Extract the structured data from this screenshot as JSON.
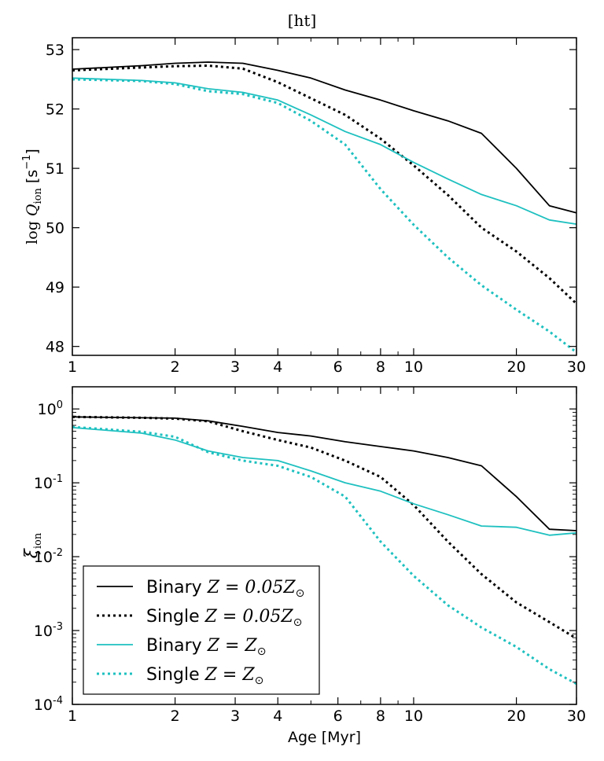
{
  "page": {
    "title": "[ht]"
  },
  "colors": {
    "black": "#000000",
    "cyan": "#1fc0c0"
  },
  "chart_data": [
    {
      "type": "line",
      "xscale": "log",
      "xlim": [
        1,
        30
      ],
      "ylim": [
        47.85,
        53.2
      ],
      "yscale": "linear",
      "xticks": [
        1,
        2,
        3,
        4,
        6,
        8,
        10,
        20,
        30
      ],
      "xtick_labels": [
        "1",
        "2",
        "3",
        "4",
        "6",
        "8",
        "10",
        "20",
        "30"
      ],
      "yticks": [
        48,
        49,
        50,
        51,
        52,
        53
      ],
      "ytick_labels": [
        "48",
        "49",
        "50",
        "51",
        "52",
        "53"
      ],
      "ylabel_parts": {
        "main": "log",
        "sym": "Q",
        "sub": "ion",
        "unit": "[s",
        "sup": "−1",
        "close": "]"
      },
      "xlabel": "",
      "series": [
        {
          "color": "black",
          "style": "solid",
          "x": [
            1,
            1.6,
            2,
            2.5,
            3.16,
            4,
            5,
            6.3,
            8,
            10,
            12.6,
            15.8,
            20,
            25,
            30
          ],
          "y": [
            52.67,
            52.73,
            52.77,
            52.79,
            52.77,
            52.65,
            52.52,
            52.32,
            52.15,
            51.97,
            51.8,
            51.59,
            51.0,
            50.37,
            50.25
          ]
        },
        {
          "color": "black",
          "style": "dotted",
          "x": [
            1,
            1.6,
            2,
            2.5,
            3.16,
            4,
            5,
            6.3,
            8,
            10,
            12.6,
            15.8,
            20,
            25,
            30
          ],
          "y": [
            52.65,
            52.7,
            52.72,
            52.73,
            52.68,
            52.45,
            52.18,
            51.9,
            51.5,
            51.05,
            50.55,
            50.0,
            49.6,
            49.15,
            48.72
          ]
        },
        {
          "color": "cyan",
          "style": "solid",
          "x": [
            1,
            1.6,
            2,
            2.5,
            3.16,
            4,
            5,
            6.3,
            8,
            10,
            12.6,
            15.8,
            20,
            25,
            30
          ],
          "y": [
            52.52,
            52.48,
            52.44,
            52.34,
            52.28,
            52.15,
            51.9,
            51.62,
            51.4,
            51.1,
            50.82,
            50.56,
            50.37,
            50.13,
            50.06
          ]
        },
        {
          "color": "cyan",
          "style": "dotted",
          "x": [
            1,
            1.6,
            2,
            2.5,
            3.16,
            4,
            5,
            6.3,
            8,
            10,
            12.6,
            15.8,
            20,
            25,
            30
          ],
          "y": [
            52.5,
            52.47,
            52.42,
            52.3,
            52.25,
            52.1,
            51.8,
            51.4,
            50.65,
            50.05,
            49.5,
            49.03,
            48.62,
            48.25,
            47.9
          ]
        }
      ]
    },
    {
      "type": "line",
      "xscale": "log",
      "yscale": "log",
      "xlim": [
        1,
        30
      ],
      "ylim_log10": [
        -4,
        0.3
      ],
      "xticks": [
        1,
        2,
        3,
        4,
        6,
        8,
        10,
        20,
        30
      ],
      "xtick_labels": [
        "1",
        "2",
        "3",
        "4",
        "6",
        "8",
        "10",
        "20",
        "30"
      ],
      "ytick_exponents": [
        0,
        -1,
        -2,
        -3,
        -4
      ],
      "ytick_base": "10",
      "ylabel_parts": {
        "sym": "ξ",
        "sub": "ion"
      },
      "xlabel": "Age [Myr]",
      "legend": {
        "position": "lower-left",
        "entries": [
          {
            "label": "Binary",
            "math": "Z = 0.05Z",
            "color": "black",
            "style": "solid"
          },
          {
            "label": "Single",
            "math": "Z = 0.05Z",
            "color": "black",
            "style": "dotted"
          },
          {
            "label": "Binary",
            "math": "Z = Z",
            "color": "cyan",
            "style": "solid"
          },
          {
            "label": "Single",
            "math": "Z = Z",
            "color": "cyan",
            "style": "dotted"
          }
        ],
        "sun_symbol": "⊙"
      },
      "series": [
        {
          "color": "black",
          "style": "solid",
          "x": [
            1,
            1.6,
            2,
            2.5,
            3.16,
            4,
            5,
            6.3,
            8,
            10,
            12.6,
            15.8,
            20,
            25,
            30
          ],
          "y": [
            0.78,
            0.76,
            0.75,
            0.69,
            0.58,
            0.48,
            0.43,
            0.36,
            0.31,
            0.27,
            0.22,
            0.17,
            0.065,
            0.0235,
            0.0225
          ]
        },
        {
          "color": "black",
          "style": "dotted",
          "x": [
            1,
            1.6,
            2,
            2.5,
            3.16,
            4,
            5,
            6.3,
            8,
            10,
            12.6,
            15.8,
            20,
            25,
            30
          ],
          "y": [
            0.78,
            0.76,
            0.74,
            0.68,
            0.5,
            0.38,
            0.3,
            0.2,
            0.12,
            0.05,
            0.016,
            0.0058,
            0.0024,
            0.0013,
            0.00078
          ]
        },
        {
          "color": "cyan",
          "style": "solid",
          "x": [
            1,
            1.6,
            2,
            2.5,
            3.16,
            4,
            5,
            6.3,
            8,
            10,
            12.6,
            15.8,
            20,
            25,
            30
          ],
          "y": [
            0.56,
            0.47,
            0.38,
            0.27,
            0.22,
            0.2,
            0.145,
            0.1,
            0.077,
            0.052,
            0.037,
            0.026,
            0.025,
            0.0195,
            0.021
          ]
        },
        {
          "color": "cyan",
          "style": "dotted",
          "x": [
            1,
            1.6,
            2,
            2.5,
            3.16,
            4,
            5,
            6.3,
            8,
            10,
            12.6,
            15.8,
            20,
            25,
            30
          ],
          "y": [
            0.57,
            0.49,
            0.42,
            0.26,
            0.2,
            0.17,
            0.12,
            0.065,
            0.016,
            0.0055,
            0.0022,
            0.0011,
            0.0006,
            0.0003,
            0.00019
          ]
        }
      ]
    }
  ]
}
